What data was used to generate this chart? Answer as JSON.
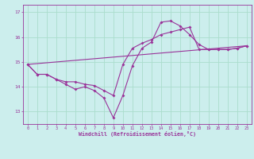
{
  "xlabel": "Windchill (Refroidissement éolien,°C)",
  "background_color": "#cceeed",
  "line_color": "#993399",
  "grid_color": "#aaddcc",
  "xlim": [
    -0.5,
    23.5
  ],
  "ylim": [
    12.5,
    17.3
  ],
  "yticks": [
    13,
    14,
    15,
    16,
    17
  ],
  "xticks": [
    0,
    1,
    2,
    3,
    4,
    5,
    6,
    7,
    8,
    9,
    10,
    11,
    12,
    13,
    14,
    15,
    16,
    17,
    18,
    19,
    20,
    21,
    22,
    23
  ],
  "series1": [
    14.9,
    14.5,
    14.5,
    14.3,
    14.1,
    13.9,
    14.0,
    13.85,
    13.55,
    12.75,
    13.65,
    14.85,
    15.55,
    15.8,
    16.6,
    16.65,
    16.45,
    16.1,
    15.7,
    15.5,
    15.5,
    15.5,
    15.55,
    15.65
  ],
  "series2": [
    14.9,
    14.5,
    14.5,
    14.3,
    14.2,
    14.2,
    14.1,
    14.05,
    13.85,
    13.65,
    14.9,
    15.55,
    15.75,
    15.9,
    16.1,
    16.2,
    16.3,
    16.4,
    15.5,
    15.5,
    15.5,
    15.5,
    15.55,
    15.65
  ],
  "series3_x": [
    0,
    23
  ],
  "series3_y": [
    14.9,
    15.65
  ],
  "marker_size": 2.0,
  "line_width": 0.8
}
